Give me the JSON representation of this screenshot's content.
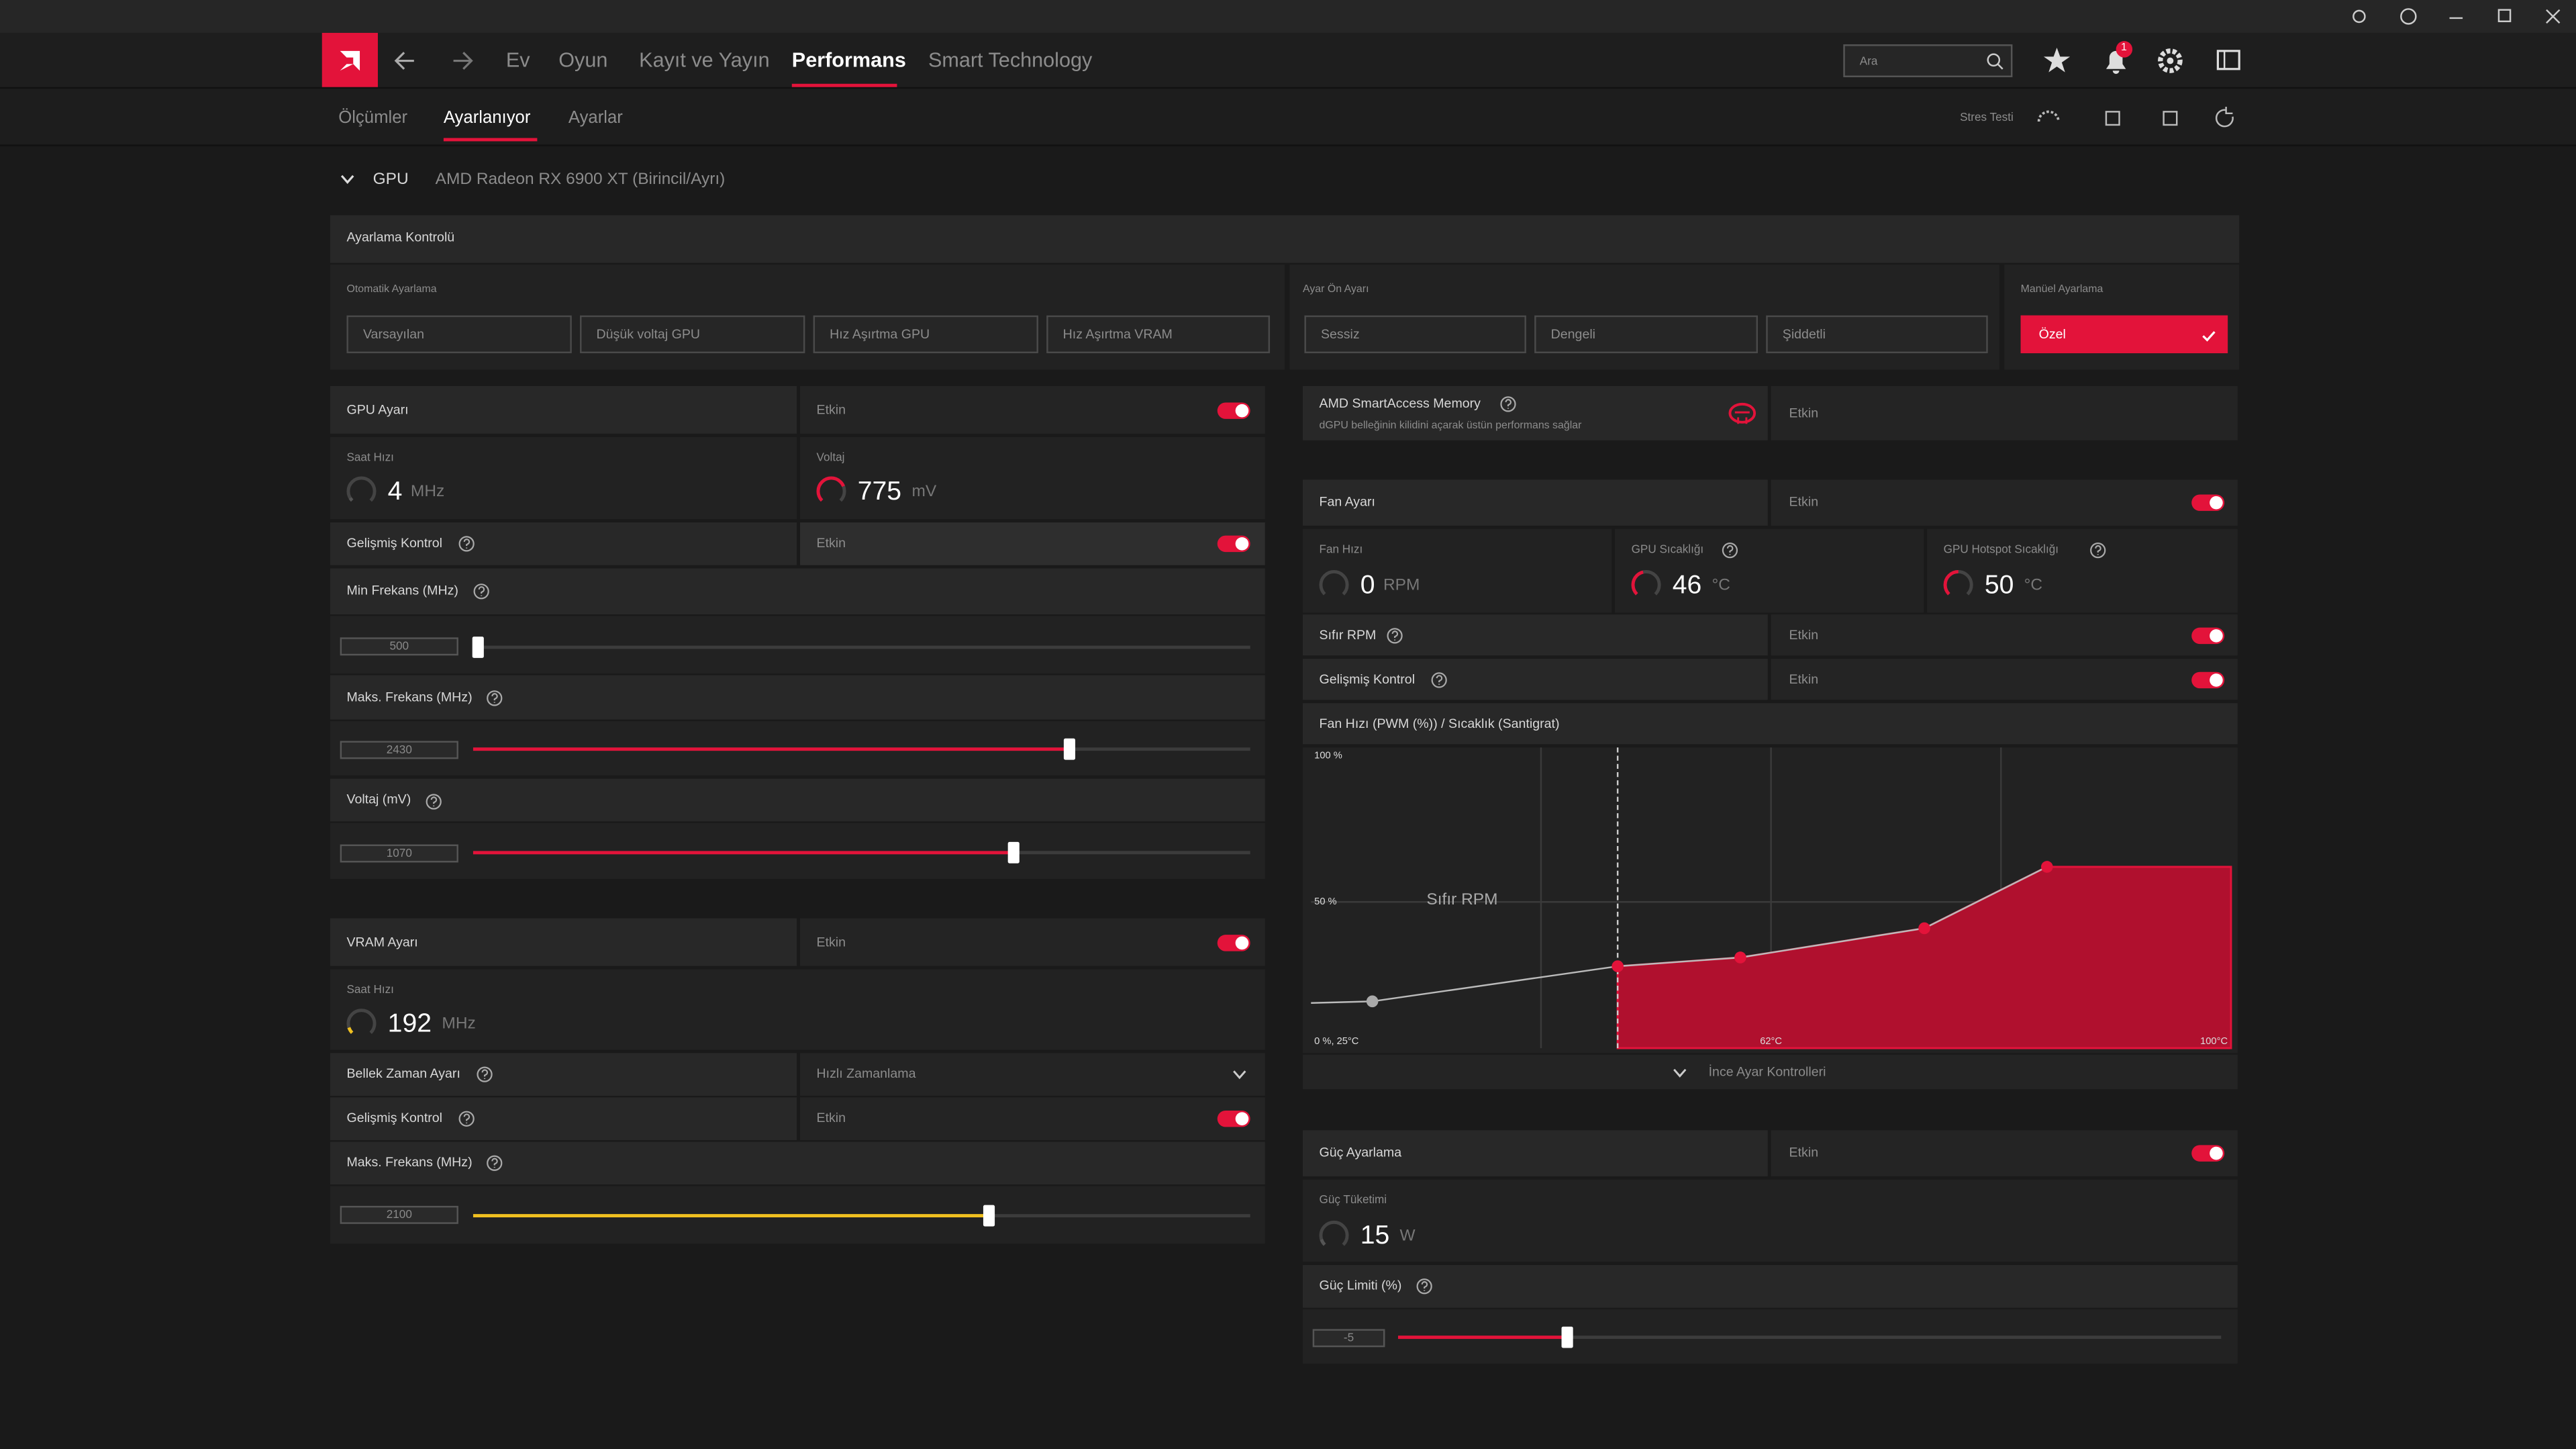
{
  "window": {
    "notification_count": "1"
  },
  "nav": {
    "tabs": [
      "Ev",
      "Oyun",
      "Kayıt ve Yayın",
      "Performans",
      "Smart Technology"
    ],
    "search_placeholder": "Ara"
  },
  "subnav": {
    "tabs": [
      "Ölçümler",
      "Ayarlanıyor",
      "Ayarlar"
    ],
    "stress_test": "Stres Testi"
  },
  "gpu": {
    "label": "GPU",
    "name": "AMD Radeon RX 6900 XT (Birincil/Ayrı)"
  },
  "tuning": {
    "title": "Ayarlama Kontrolü",
    "auto_label": "Otomatik Ayarlama",
    "auto_options": [
      "Varsayılan",
      "Düşük voltaj GPU",
      "Hız Aşırtma GPU",
      "Hız Aşırtma VRAM"
    ],
    "preset_label": "Ayar Ön Ayarı",
    "preset_options": [
      "Sessiz",
      "Dengeli",
      "Şiddetli"
    ],
    "manual_label": "Manüel Ayarlama",
    "manual_option": "Özel"
  },
  "gpu_tuning": {
    "title": "GPU Ayarı",
    "state": "Etkin",
    "clock_label": "Saat Hızı",
    "clock_value": "4",
    "clock_unit": "MHz",
    "voltage_label": "Voltaj",
    "voltage_value": "775",
    "voltage_unit": "mV",
    "advanced": "Gelişmiş Kontrol",
    "advanced_state": "Etkin",
    "sliders": [
      {
        "label": "Min Frekans (MHz)",
        "value": "500"
      },
      {
        "label": "Maks. Frekans (MHz)",
        "value": "2430"
      },
      {
        "label": "Voltaj (mV)",
        "value": "1070"
      }
    ]
  },
  "vram": {
    "title": "VRAM Ayarı",
    "state": "Etkin",
    "clock_label": "Saat Hızı",
    "clock_value": "192",
    "clock_unit": "MHz",
    "timing_label": "Bellek Zaman Ayarı",
    "timing_value": "Hızlı Zamanlama",
    "advanced": "Gelişmiş Kontrol",
    "advanced_state": "Etkin",
    "slider_label": "Maks. Frekans (MHz)",
    "slider_value": "2100"
  },
  "sam": {
    "title": "AMD SmartAccess Memory",
    "description": "dGPU belleğinin kilidini açarak üstün performans sağlar",
    "state": "Etkin"
  },
  "fan": {
    "title": "Fan Ayarı",
    "state": "Etkin",
    "metrics": [
      {
        "label": "Fan Hızı",
        "value": "0",
        "unit": "RPM"
      },
      {
        "label": "GPU Sıcaklığı",
        "value": "46",
        "unit": "°C"
      },
      {
        "label": "GPU Hotspot Sıcaklığı",
        "value": "50",
        "unit": "°C"
      }
    ],
    "zero_rpm": "Sıfır RPM",
    "zero_rpm_state": "Etkin",
    "advanced": "Gelişmiş Kontrol",
    "advanced_state": "Etkin",
    "curve_title": "Fan Hızı (PWM (%)) / Sıcaklık (Santigrat)",
    "fine_tune": "İnce Ayar Kontrolleri"
  },
  "fan_curve": {
    "y_labels": [
      "100 %",
      "50 %"
    ],
    "origin_label": "0 %, 25°C",
    "x_labels": [
      "62°C",
      "100°C"
    ],
    "zero_rpm_label": "Sıfır RPM",
    "xlim": [
      25,
      100
    ],
    "ylim": [
      0,
      100
    ],
    "zero_rpm_temp": 50,
    "temp": [
      30,
      50,
      60,
      75,
      85
    ],
    "pwm": [
      16,
      28,
      31,
      41,
      62
    ]
  },
  "power": {
    "title": "Güç Ayarlama",
    "state": "Etkin",
    "consumption_label": "Güç Tüketimi",
    "consumption_value": "15",
    "consumption_unit": "W",
    "limit_label": "Güç Limiti (%)",
    "limit_value": "-5"
  }
}
